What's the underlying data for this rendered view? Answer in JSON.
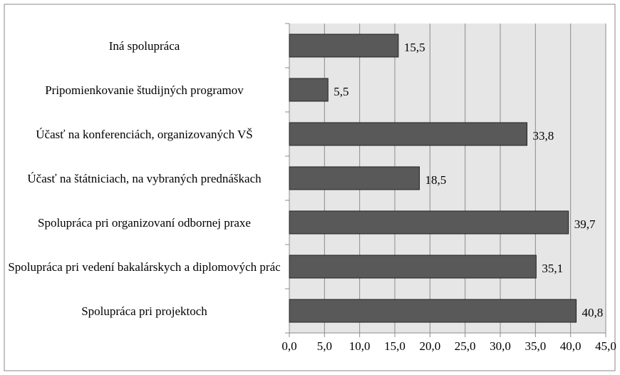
{
  "chart_data": {
    "type": "bar",
    "orientation": "horizontal",
    "categories": [
      "Iná spolupráca",
      "Pripomienkovanie študijných programov",
      "Účasť na konferenciách, organizovaných VŠ",
      "Účasť na štátniciach, na vybraných prednáškach",
      "Spolupráca pri organizovaní odbornej praxe",
      "Spolupráca pri vedení bakalárskych a diplomových prác",
      "Spolupráca pri projektoch"
    ],
    "values": [
      15.5,
      5.5,
      33.8,
      18.5,
      39.7,
      35.1,
      40.8
    ],
    "value_labels": [
      "15,5",
      "5,5",
      "33,8",
      "18,5",
      "39,7",
      "35,1",
      "40,8"
    ],
    "color": "#595959",
    "xlim": [
      0,
      45
    ],
    "xticks": [
      {
        "value": 0,
        "label": "0,0"
      },
      {
        "value": 5,
        "label": "5,0"
      },
      {
        "value": 10,
        "label": "10,0"
      },
      {
        "value": 15,
        "label": "15,0"
      },
      {
        "value": 20,
        "label": "20,0"
      },
      {
        "value": 25,
        "label": "25,0"
      },
      {
        "value": 30,
        "label": "30,0"
      },
      {
        "value": 35,
        "label": "35,0"
      },
      {
        "value": 40,
        "label": "40,0"
      },
      {
        "value": 45,
        "label": "45,0"
      }
    ],
    "grid": true
  }
}
